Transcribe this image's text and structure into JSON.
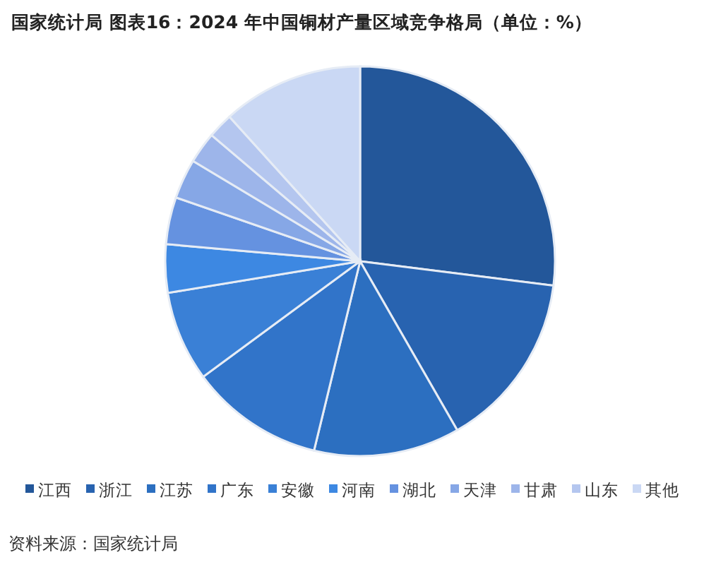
{
  "chart_data": {
    "type": "pie",
    "title": "国家统计局  图表16：2024 年中国铜材产量区域竞争格局（单位：%）",
    "categories": [
      "江西",
      "浙江",
      "江苏",
      "广东",
      "安徽",
      "河南",
      "湖北",
      "天津",
      "甘肃",
      "山东",
      "其他"
    ],
    "values": [
      27,
      14.7,
      12.1,
      11.1,
      7.5,
      4,
      3.9,
      3.3,
      2.6,
      2.1,
      11.7
    ],
    "colors": [
      "#23579a",
      "#2863b0",
      "#2c6fc0",
      "#3174c9",
      "#3a80d6",
      "#3d88e2",
      "#6592e0",
      "#86a7e6",
      "#9db5ea",
      "#b4c6ef",
      "#cad8f4"
    ],
    "legend": "bottom",
    "annotations": [
      "资料来源：国家统计局"
    ]
  }
}
